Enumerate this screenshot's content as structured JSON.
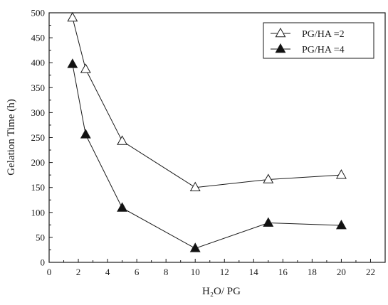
{
  "chart_data": {
    "type": "line",
    "xlabel": "H₂O/ PG",
    "ylabel": "Gelation Time (h)",
    "xlim": [
      0,
      23
    ],
    "ylim": [
      0,
      500
    ],
    "xticks": [
      "0",
      "2",
      "4",
      "6",
      "8",
      "10",
      "12",
      "14",
      "16",
      "18",
      "20",
      "22"
    ],
    "yticks": [
      "0",
      "50",
      "100",
      "150",
      "200",
      "250",
      "300",
      "350",
      "400",
      "450",
      "500"
    ],
    "xtick_values": [
      0,
      2,
      4,
      6,
      8,
      10,
      12,
      14,
      16,
      18,
      20,
      22
    ],
    "ytick_values": [
      0,
      50,
      100,
      150,
      200,
      250,
      300,
      350,
      400,
      450,
      500
    ],
    "grid": false,
    "legend_position": "top-right",
    "series": [
      {
        "name": "PG/HA =2",
        "marker": "open-triangle",
        "x": [
          1.6,
          2.5,
          5,
          10,
          15,
          20
        ],
        "y": [
          490,
          387,
          243,
          150,
          166,
          175
        ]
      },
      {
        "name": "PG/HA =4",
        "marker": "filled-triangle",
        "x": [
          1.6,
          2.5,
          5,
          10,
          15,
          20
        ],
        "y": [
          397,
          256,
          109,
          28,
          79,
          74
        ]
      }
    ]
  },
  "colors": {
    "line": "#1a1a1a",
    "marker_open_fill": "#ffffff",
    "marker_filled": "#111111"
  }
}
